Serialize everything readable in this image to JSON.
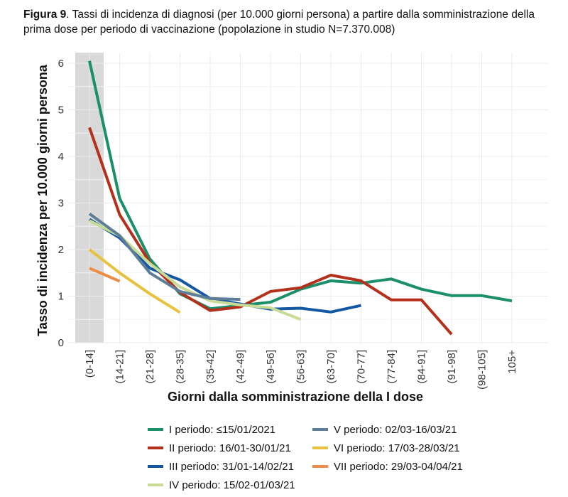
{
  "figure": {
    "label": "Figura 9",
    "caption": ". Tassi di incidenza di diagnosi (per 10.000 giorni persona) a partire dalla somministrazione della prima dose per periodo di vaccinazione (popolazione in studio N=7.370.008)"
  },
  "chart_data": {
    "type": "line",
    "title": "",
    "xlabel": "Giorni dalla somministrazione della I dose",
    "ylabel": "Tasso di incidenza per 10.000 giorni persona",
    "categories": [
      "(0-14]",
      "(14-21]",
      "(21-28]",
      "(28-35]",
      "(35-42]",
      "(42-49]",
      "(49-56]",
      "(56-63]",
      "(63-70]",
      "(70-77]",
      "(77-84]",
      "(84-91]",
      "(91-98]",
      "(98-105]",
      "105+"
    ],
    "ylim": [
      0,
      6.2
    ],
    "yticks": [
      0,
      1,
      2,
      3,
      4,
      5,
      6
    ],
    "grid": true,
    "shaded_category": "(0-14]",
    "shade_color": "#d9d9d9",
    "legend_position": "bottom",
    "series": [
      {
        "name": "I periodo: ≤15/01/2021",
        "color": "#1a8f6a",
        "values": [
          6.05,
          3.1,
          1.8,
          1.05,
          0.73,
          0.8,
          0.87,
          1.15,
          1.33,
          1.28,
          1.37,
          1.15,
          1.01,
          1.01,
          0.9
        ]
      },
      {
        "name": "II periodo: 16/01-30/01/21",
        "color": "#b5301a",
        "values": [
          4.62,
          2.75,
          1.72,
          1.08,
          0.69,
          0.77,
          1.1,
          1.18,
          1.45,
          1.33,
          0.92,
          0.92,
          0.18,
          null,
          null
        ]
      },
      {
        "name": "III periodo: 31/01-14/02/21",
        "color": "#1458a3",
        "values": [
          2.65,
          2.25,
          1.6,
          1.35,
          0.95,
          0.83,
          0.72,
          0.74,
          0.66,
          0.8,
          null,
          null,
          null,
          null,
          null
        ]
      },
      {
        "name": "IV periodo: 15/02-01/03/21",
        "color": "#c8dc96",
        "values": [
          2.62,
          2.3,
          1.7,
          1.2,
          0.9,
          0.81,
          0.75,
          0.5,
          null,
          null,
          null,
          null,
          null,
          null,
          null
        ]
      },
      {
        "name": "V periodo: 02/03-16/03/21",
        "color": "#5e7d99",
        "values": [
          2.77,
          2.3,
          1.5,
          1.1,
          0.95,
          0.93,
          null,
          null,
          null,
          null,
          null,
          null,
          null,
          null,
          null
        ]
      },
      {
        "name": "VI periodo: 17/03-28/03/21",
        "color": "#e8c23f",
        "values": [
          2.0,
          1.5,
          1.05,
          0.65,
          null,
          null,
          null,
          null,
          null,
          null,
          null,
          null,
          null,
          null,
          null
        ]
      },
      {
        "name": "VII periodo: 29/03-04/04/21",
        "color": "#ed8c45",
        "values": [
          1.6,
          1.32,
          null,
          null,
          null,
          null,
          null,
          null,
          null,
          null,
          null,
          null,
          null,
          null,
          null
        ]
      }
    ]
  }
}
